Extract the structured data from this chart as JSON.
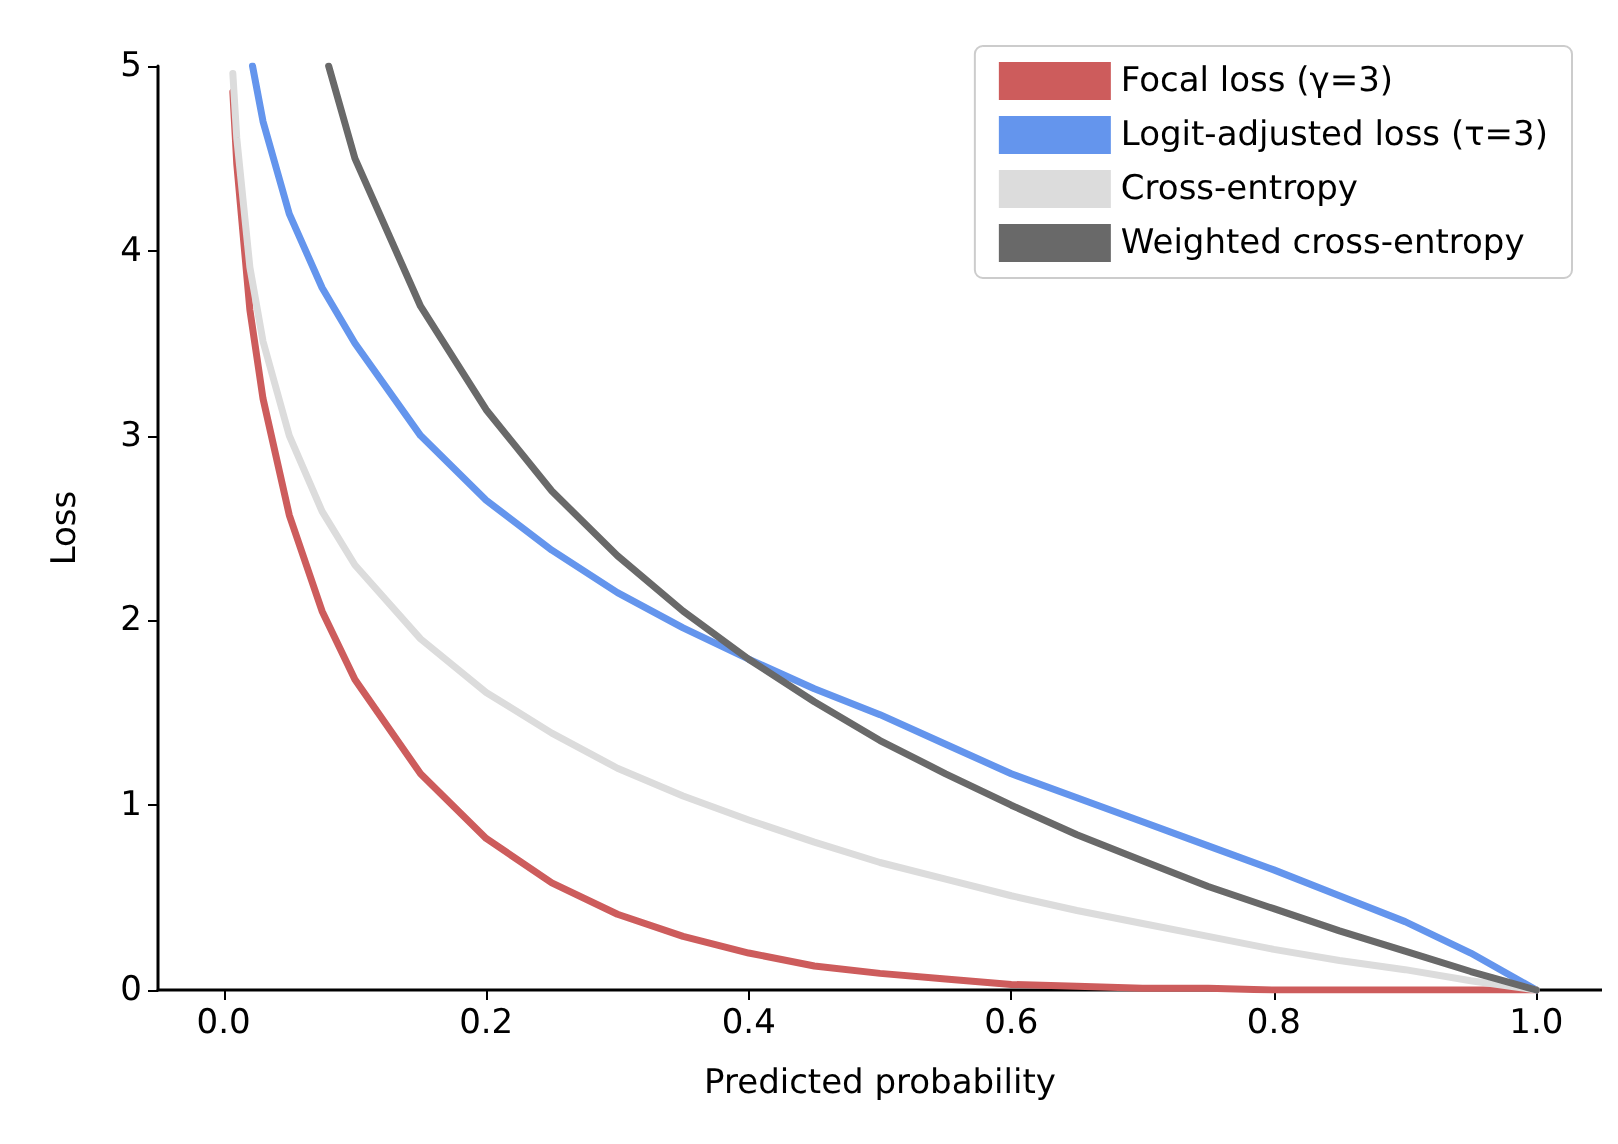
{
  "chart_data": {
    "type": "line",
    "xlabel": "Predicted probability",
    "ylabel": "Loss",
    "xlim": [
      -0.05,
      1.05
    ],
    "ylim": [
      0,
      5
    ],
    "xticks": [
      {
        "value": 0,
        "label": "0.0"
      },
      {
        "value": 0.2,
        "label": "0.2"
      },
      {
        "value": 0.4,
        "label": "0.4"
      },
      {
        "value": 0.6,
        "label": "0.6"
      },
      {
        "value": 0.8,
        "label": "0.8"
      },
      {
        "value": 1,
        "label": "1.0"
      }
    ],
    "yticks": [
      0,
      1,
      2,
      3,
      4,
      5
    ],
    "grid": false,
    "legend": "top right",
    "marker": "none",
    "line_style": "solid",
    "series": [
      {
        "name": "Focal loss (γ=3)",
        "color": "#cd5c5c",
        "x": [
          0.007,
          0.01,
          0.02,
          0.03,
          0.05,
          0.075,
          0.1,
          0.15,
          0.2,
          0.25,
          0.3,
          0.35,
          0.4,
          0.45,
          0.5,
          0.55,
          0.6,
          0.65,
          0.7,
          0.75,
          0.8,
          0.85,
          0.9,
          0.95,
          1
        ],
        "values": [
          4.86,
          4.47,
          3.68,
          3.2,
          2.57,
          2.05,
          1.68,
          1.17,
          0.82,
          0.58,
          0.41,
          0.29,
          0.2,
          0.13,
          0.09,
          0.06,
          0.03,
          0.02,
          0.01,
          0.01,
          0,
          0,
          0,
          0,
          0
        ]
      },
      {
        "name": "Logit-adjusted loss (τ=3)",
        "color": "#6495ed",
        "x": [
          0.022,
          0.03,
          0.05,
          0.075,
          0.1,
          0.15,
          0.2,
          0.25,
          0.3,
          0.35,
          0.4,
          0.45,
          0.5,
          0.55,
          0.6,
          0.65,
          0.7,
          0.75,
          0.8,
          0.85,
          0.9,
          0.95,
          1
        ],
        "values": [
          5,
          4.7,
          4.2,
          3.8,
          3.5,
          3,
          2.65,
          2.38,
          2.15,
          1.96,
          1.79,
          1.63,
          1.49,
          1.33,
          1.17,
          1.04,
          0.91,
          0.78,
          0.65,
          0.51,
          0.37,
          0.2,
          0
        ]
      },
      {
        "name": "Cross-entropy",
        "color": "#dcdcdc",
        "x": [
          0.007,
          0.01,
          0.02,
          0.03,
          0.05,
          0.075,
          0.1,
          0.15,
          0.2,
          0.25,
          0.3,
          0.35,
          0.4,
          0.45,
          0.5,
          0.55,
          0.6,
          0.65,
          0.7,
          0.75,
          0.8,
          0.85,
          0.9,
          0.95,
          1
        ],
        "values": [
          4.96,
          4.61,
          3.91,
          3.51,
          3,
          2.59,
          2.3,
          1.9,
          1.61,
          1.39,
          1.2,
          1.05,
          0.92,
          0.8,
          0.69,
          0.6,
          0.51,
          0.43,
          0.36,
          0.29,
          0.22,
          0.16,
          0.11,
          0.05,
          0
        ]
      },
      {
        "name": "Weighted cross-entropy",
        "color": "#696969",
        "x": [
          0.08,
          0.1,
          0.15,
          0.2,
          0.25,
          0.3,
          0.35,
          0.4,
          0.45,
          0.5,
          0.55,
          0.6,
          0.65,
          0.7,
          0.75,
          0.8,
          0.85,
          0.9,
          0.95,
          1
        ],
        "values": [
          5,
          4.5,
          3.7,
          3.14,
          2.7,
          2.35,
          2.05,
          1.79,
          1.56,
          1.35,
          1.17,
          1,
          0.84,
          0.7,
          0.56,
          0.44,
          0.32,
          0.21,
          0.1,
          0
        ]
      }
    ]
  }
}
